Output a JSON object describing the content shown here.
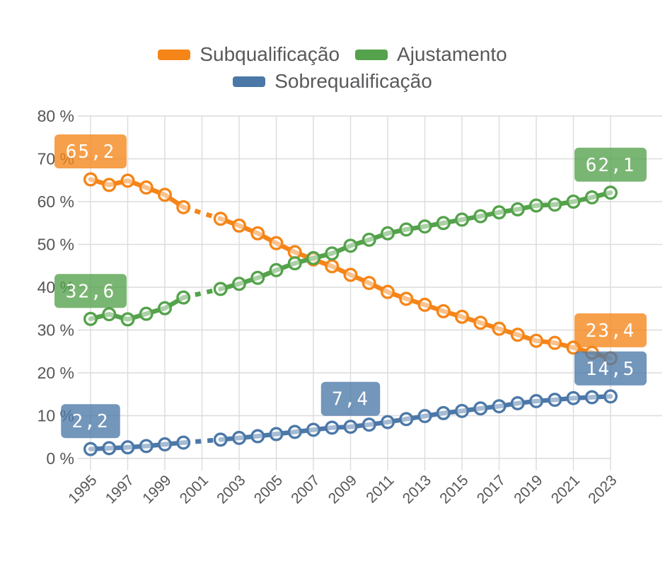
{
  "chart_data": {
    "type": "line",
    "title": "",
    "xlabel": "",
    "ylabel": "",
    "ylim": [
      0,
      80
    ],
    "grid": true,
    "legend_position": "top",
    "y_ticks": [
      0,
      10,
      20,
      30,
      40,
      50,
      60,
      70,
      80
    ],
    "y_tick_suffix": " %",
    "x": [
      1995,
      1996,
      1997,
      1998,
      1999,
      2000,
      2001,
      2002,
      2003,
      2004,
      2005,
      2006,
      2007,
      2008,
      2009,
      2010,
      2011,
      2012,
      2013,
      2014,
      2015,
      2016,
      2017,
      2018,
      2019,
      2020,
      2021,
      2022,
      2023
    ],
    "x_tick_labels": [
      "1995",
      "1997",
      "1999",
      "2001",
      "2003",
      "2005",
      "2007",
      "2009",
      "2011",
      "2013",
      "2015",
      "2017",
      "2019",
      "2021",
      "2023"
    ],
    "missing_years": [
      2001
    ],
    "series": [
      {
        "name": "Subqualificação",
        "color": "#f58518",
        "values": [
          65.2,
          63.9,
          64.9,
          63.3,
          61.6,
          58.7,
          null,
          56.0,
          54.4,
          52.6,
          50.3,
          48.2,
          46.5,
          44.9,
          42.9,
          41.0,
          38.9,
          37.3,
          35.9,
          34.4,
          33.1,
          31.7,
          30.3,
          28.9,
          27.5,
          27.0,
          25.9,
          24.7,
          23.4
        ]
      },
      {
        "name": "Ajustamento",
        "color": "#54a24b",
        "values": [
          32.6,
          33.7,
          32.5,
          33.8,
          35.1,
          37.6,
          null,
          39.6,
          40.8,
          42.2,
          44.0,
          45.6,
          46.8,
          47.9,
          49.7,
          51.1,
          52.6,
          53.5,
          54.2,
          55.0,
          55.8,
          56.6,
          57.5,
          58.2,
          59.1,
          59.3,
          60.0,
          61.0,
          62.1
        ]
      },
      {
        "name": "Sobrequalificação",
        "color": "#4c78a8",
        "values": [
          2.2,
          2.4,
          2.6,
          2.9,
          3.3,
          3.7,
          null,
          4.4,
          4.8,
          5.2,
          5.7,
          6.2,
          6.7,
          7.2,
          7.4,
          7.9,
          8.5,
          9.2,
          9.9,
          10.6,
          11.1,
          11.7,
          12.2,
          12.9,
          13.4,
          13.7,
          14.1,
          14.3,
          14.5
        ]
      }
    ],
    "annotations": [
      {
        "series": "Subqualificação",
        "year": 1995,
        "value": 65.2,
        "text": "65,2"
      },
      {
        "series": "Ajustamento",
        "year": 1995,
        "value": 32.6,
        "text": "32,6"
      },
      {
        "series": "Sobrequalificação",
        "year": 1995,
        "value": 2.2,
        "text": "2,2"
      },
      {
        "series": "Sobrequalificação",
        "year": 2009,
        "value": 7.4,
        "text": "7,4"
      },
      {
        "series": "Ajustamento",
        "year": 2023,
        "value": 62.1,
        "text": "62,1"
      },
      {
        "series": "Subqualificação",
        "year": 2023,
        "value": 23.4,
        "text": "23,4"
      },
      {
        "series": "Sobrequalificação",
        "year": 2023,
        "value": 14.5,
        "text": "14,5"
      }
    ]
  }
}
